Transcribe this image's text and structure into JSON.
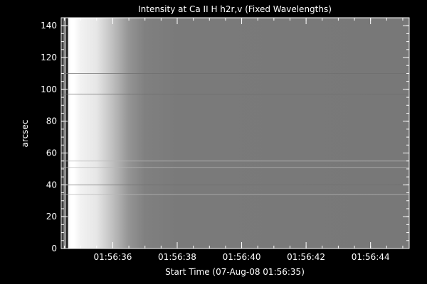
{
  "chart_data": {
    "type": "heatmap",
    "title": "Intensity at Ca II H h2r,v (Fixed Wavelengths)",
    "xlabel": "Start Time (07-Aug-08 01:56:35)",
    "ylabel": "arcsec",
    "colormap": "grayscale",
    "x_unit": "seconds after 01:56:35",
    "xlim": [
      -0.6,
      10.2
    ],
    "ylim": [
      0,
      145
    ],
    "x_ticks": [
      {
        "value": 1,
        "label": "01:56:36"
      },
      {
        "value": 3,
        "label": "01:56:38"
      },
      {
        "value": 5,
        "label": "01:56:40"
      },
      {
        "value": 7,
        "label": "01:56:42"
      },
      {
        "value": 9,
        "label": "01:56:44"
      }
    ],
    "x_minor_step": 0.5,
    "y_ticks": [
      0,
      20,
      40,
      60,
      80,
      100,
      120,
      140
    ],
    "y_minor_step": 5,
    "intensity_profile": {
      "description_x": [
        -0.6,
        -0.5,
        -0.4,
        -0.3,
        -0.2,
        0.0,
        0.5,
        1.0,
        1.5,
        2.0,
        3.0,
        10.2
      ],
      "values": [
        0.05,
        0.55,
        0.95,
        1.0,
        1.0,
        0.95,
        0.9,
        0.75,
        0.58,
        0.5,
        0.48,
        0.47
      ]
    },
    "dark_column_x": -0.42,
    "horizontal_features_y": [
      55,
      51,
      34,
      40,
      110,
      97
    ]
  },
  "colors": {
    "background": "#000000",
    "axis": "#ffffff",
    "plot_gray": "#7a7a7a"
  }
}
